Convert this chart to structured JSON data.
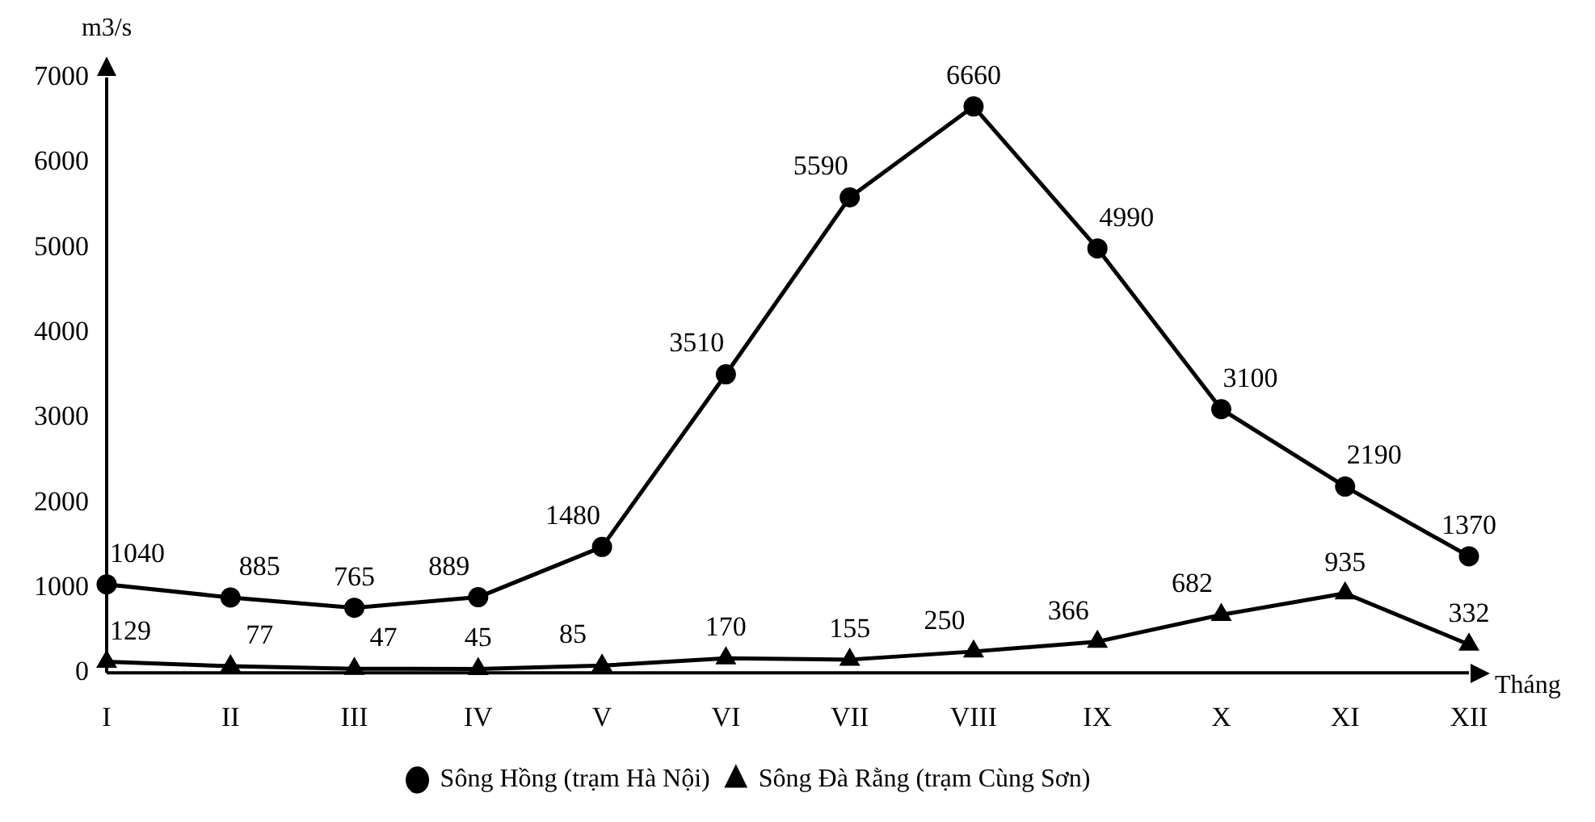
{
  "chart_data": {
    "type": "line",
    "xlabel": "Tháng",
    "ylabel": "m3/s",
    "categories": [
      "I",
      "II",
      "III",
      "IV",
      "V",
      "VI",
      "VII",
      "VIII",
      "IX",
      "X",
      "XI",
      "XII"
    ],
    "series": [
      {
        "name": "Sông Hồng (trạm Hà Nội)",
        "color": "#000000",
        "marker": "circle",
        "values": [
          1040,
          885,
          765,
          889,
          1480,
          3510,
          5590,
          6660,
          4990,
          3100,
          2190,
          1370
        ]
      },
      {
        "name": "Sông Đà Rằng (trạm Cùng Sơn)",
        "color": "#000000",
        "marker": "triangle",
        "values": [
          129,
          77,
          47,
          45,
          85,
          170,
          155,
          250,
          366,
          682,
          935,
          332
        ]
      }
    ],
    "ylim": [
      0,
      7000
    ],
    "yticks": [
      0,
      1000,
      2000,
      3000,
      4000,
      5000,
      6000,
      7000
    ],
    "grid": false,
    "legend": "bottom",
    "data_labels": true,
    "line_style": "solid"
  }
}
